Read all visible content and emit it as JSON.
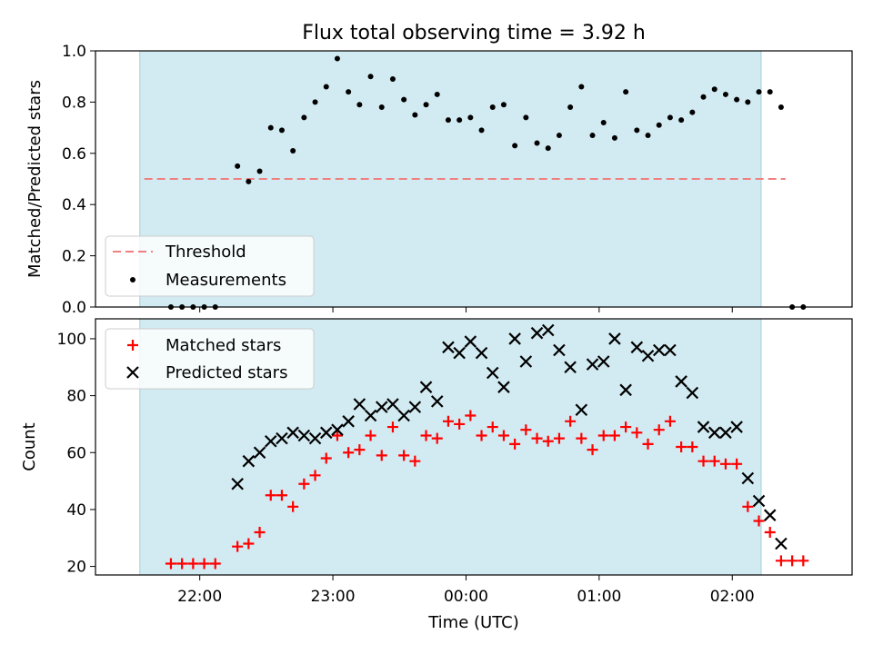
{
  "figure": {
    "title": "Flux total observing time = 3.92 h",
    "xlabel": "Time (UTC)",
    "x_tick_labels": [
      "22:00",
      "23:00",
      "00:00",
      "01:00",
      "02:00"
    ],
    "observing_window_color": "#add8e6"
  },
  "chart_data": [
    {
      "type": "scatter",
      "panel": "top",
      "ylabel": "Matched/Predicted stars",
      "ylim": [
        0,
        1.0
      ],
      "y_ticks": [
        0.0,
        0.2,
        0.4,
        0.6,
        0.8,
        1.0
      ],
      "y_tick_labels": [
        "0.0",
        "0.2",
        "0.4",
        "0.6",
        "0.8",
        "1.0"
      ],
      "x_tick_labels": [
        "22:00",
        "23:00",
        "00:00",
        "01:00",
        "02:00"
      ],
      "observing_window": {
        "start": "21:33",
        "end": "02:13"
      },
      "legend": {
        "placement": "lower left",
        "entries": [
          "Threshold",
          "Measurements"
        ]
      },
      "series": [
        {
          "name": "Threshold",
          "style": "dashed-line",
          "color": "#f08080",
          "x_start": "21:35",
          "x_end": "02:24",
          "y": 0.5
        },
        {
          "name": "Measurements",
          "style": "dot",
          "color": "#000000",
          "points": [
            [
              "21:47",
              0.0
            ],
            [
              "21:52",
              0.0
            ],
            [
              "21:57",
              0.0
            ],
            [
              "22:02",
              0.0
            ],
            [
              "22:07",
              0.0
            ],
            [
              "22:17",
              0.55
            ],
            [
              "22:22",
              0.49
            ],
            [
              "22:27",
              0.53
            ],
            [
              "22:32",
              0.7
            ],
            [
              "22:37",
              0.69
            ],
            [
              "22:42",
              0.61
            ],
            [
              "22:47",
              0.74
            ],
            [
              "22:52",
              0.8
            ],
            [
              "22:57",
              0.86
            ],
            [
              "23:02",
              0.97
            ],
            [
              "23:07",
              0.84
            ],
            [
              "23:12",
              0.79
            ],
            [
              "23:17",
              0.9
            ],
            [
              "23:22",
              0.78
            ],
            [
              "23:27",
              0.89
            ],
            [
              "23:32",
              0.81
            ],
            [
              "23:37",
              0.75
            ],
            [
              "23:42",
              0.79
            ],
            [
              "23:47",
              0.83
            ],
            [
              "23:52",
              0.73
            ],
            [
              "23:57",
              0.73
            ],
            [
              "00:02",
              0.74
            ],
            [
              "00:07",
              0.69
            ],
            [
              "00:12",
              0.78
            ],
            [
              "00:17",
              0.79
            ],
            [
              "00:22",
              0.63
            ],
            [
              "00:27",
              0.74
            ],
            [
              "00:32",
              0.64
            ],
            [
              "00:37",
              0.62
            ],
            [
              "00:42",
              0.67
            ],
            [
              "00:47",
              0.78
            ],
            [
              "00:52",
              0.86
            ],
            [
              "00:57",
              0.67
            ],
            [
              "01:02",
              0.72
            ],
            [
              "01:07",
              0.66
            ],
            [
              "01:12",
              0.84
            ],
            [
              "01:17",
              0.69
            ],
            [
              "01:22",
              0.67
            ],
            [
              "01:27",
              0.71
            ],
            [
              "01:32",
              0.74
            ],
            [
              "01:37",
              0.73
            ],
            [
              "01:42",
              0.76
            ],
            [
              "01:47",
              0.82
            ],
            [
              "01:52",
              0.85
            ],
            [
              "01:57",
              0.83
            ],
            [
              "02:02",
              0.81
            ],
            [
              "02:07",
              0.8
            ],
            [
              "02:12",
              0.84
            ],
            [
              "02:17",
              0.84
            ],
            [
              "02:22",
              0.78
            ],
            [
              "02:27",
              0.0
            ],
            [
              "02:32",
              0.0
            ]
          ]
        }
      ]
    },
    {
      "type": "scatter",
      "panel": "bottom",
      "ylabel": "Count",
      "ylim": [
        17,
        107
      ],
      "y_ticks": [
        20,
        40,
        60,
        80,
        100
      ],
      "y_tick_labels": [
        "20",
        "40",
        "60",
        "80",
        "100"
      ],
      "xlabel": "Time (UTC)",
      "x_tick_labels": [
        "22:00",
        "23:00",
        "00:00",
        "01:00",
        "02:00"
      ],
      "observing_window": {
        "start": "21:33",
        "end": "02:13"
      },
      "legend": {
        "placement": "upper left",
        "entries": [
          "Matched stars",
          "Predicted stars"
        ]
      },
      "series": [
        {
          "name": "Matched stars",
          "marker": "plus",
          "color": "#ff0000",
          "points": [
            [
              "21:47",
              21
            ],
            [
              "21:52",
              21
            ],
            [
              "21:57",
              21
            ],
            [
              "22:02",
              21
            ],
            [
              "22:07",
              21
            ],
            [
              "22:17",
              27
            ],
            [
              "22:22",
              28
            ],
            [
              "22:27",
              32
            ],
            [
              "22:32",
              45
            ],
            [
              "22:37",
              45
            ],
            [
              "22:42",
              41
            ],
            [
              "22:47",
              49
            ],
            [
              "22:52",
              52
            ],
            [
              "22:57",
              58
            ],
            [
              "23:02",
              66
            ],
            [
              "23:07",
              60
            ],
            [
              "23:12",
              61
            ],
            [
              "23:17",
              66
            ],
            [
              "23:22",
              59
            ],
            [
              "23:27",
              69
            ],
            [
              "23:32",
              59
            ],
            [
              "23:37",
              57
            ],
            [
              "23:42",
              66
            ],
            [
              "23:47",
              65
            ],
            [
              "23:52",
              71
            ],
            [
              "23:57",
              70
            ],
            [
              "00:02",
              73
            ],
            [
              "00:07",
              66
            ],
            [
              "00:12",
              69
            ],
            [
              "00:17",
              66
            ],
            [
              "00:22",
              63
            ],
            [
              "00:27",
              68
            ],
            [
              "00:32",
              65
            ],
            [
              "00:37",
              64
            ],
            [
              "00:42",
              65
            ],
            [
              "00:47",
              71
            ],
            [
              "00:52",
              65
            ],
            [
              "00:57",
              61
            ],
            [
              "01:02",
              66
            ],
            [
              "01:07",
              66
            ],
            [
              "01:12",
              69
            ],
            [
              "01:17",
              67
            ],
            [
              "01:22",
              63
            ],
            [
              "01:27",
              68
            ],
            [
              "01:32",
              71
            ],
            [
              "01:37",
              62
            ],
            [
              "01:42",
              62
            ],
            [
              "01:47",
              57
            ],
            [
              "01:52",
              57
            ],
            [
              "01:57",
              56
            ],
            [
              "02:02",
              56
            ],
            [
              "02:07",
              41
            ],
            [
              "02:12",
              36
            ],
            [
              "02:17",
              32
            ],
            [
              "02:22",
              22
            ],
            [
              "02:27",
              22
            ],
            [
              "02:32",
              22
            ]
          ]
        },
        {
          "name": "Predicted stars",
          "marker": "x",
          "color": "#000000",
          "points": [
            [
              "22:17",
              49
            ],
            [
              "22:22",
              57
            ],
            [
              "22:27",
              60
            ],
            [
              "22:32",
              64
            ],
            [
              "22:37",
              65
            ],
            [
              "22:42",
              67
            ],
            [
              "22:47",
              66
            ],
            [
              "22:52",
              65
            ],
            [
              "22:57",
              67
            ],
            [
              "23:02",
              68
            ],
            [
              "23:07",
              71
            ],
            [
              "23:12",
              77
            ],
            [
              "23:17",
              73
            ],
            [
              "23:22",
              76
            ],
            [
              "23:27",
              77
            ],
            [
              "23:32",
              73
            ],
            [
              "23:37",
              76
            ],
            [
              "23:42",
              83
            ],
            [
              "23:47",
              78
            ],
            [
              "23:52",
              97
            ],
            [
              "23:57",
              95
            ],
            [
              "00:02",
              99
            ],
            [
              "00:07",
              95
            ],
            [
              "00:12",
              88
            ],
            [
              "00:17",
              83
            ],
            [
              "00:22",
              100
            ],
            [
              "00:27",
              92
            ],
            [
              "00:32",
              102
            ],
            [
              "00:37",
              103
            ],
            [
              "00:42",
              96
            ],
            [
              "00:47",
              90
            ],
            [
              "00:52",
              75
            ],
            [
              "00:57",
              91
            ],
            [
              "01:02",
              92
            ],
            [
              "01:07",
              100
            ],
            [
              "01:12",
              82
            ],
            [
              "01:17",
              97
            ],
            [
              "01:22",
              94
            ],
            [
              "01:27",
              96
            ],
            [
              "01:32",
              96
            ],
            [
              "01:37",
              85
            ],
            [
              "01:42",
              81
            ],
            [
              "01:47",
              69
            ],
            [
              "01:52",
              67
            ],
            [
              "01:57",
              67
            ],
            [
              "02:02",
              69
            ],
            [
              "02:07",
              51
            ],
            [
              "02:12",
              43
            ],
            [
              "02:17",
              38
            ],
            [
              "02:22",
              28
            ]
          ]
        }
      ]
    }
  ]
}
